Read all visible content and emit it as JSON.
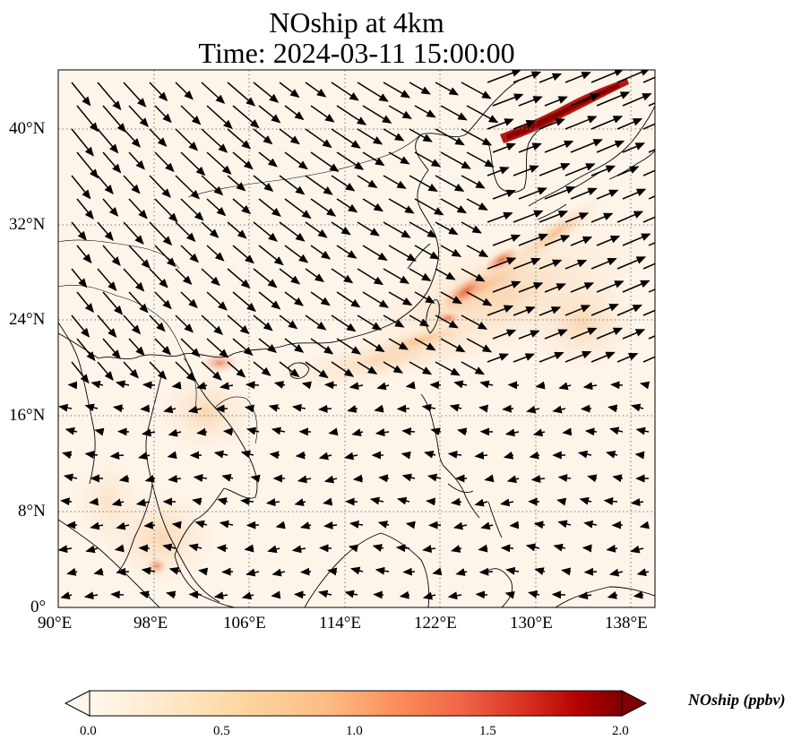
{
  "title": {
    "line1": "NOship at 4km",
    "line2": "Time: 2024-03-11 15:00:00"
  },
  "map": {
    "projection": "PlateCarree",
    "lon_range": [
      90,
      140
    ],
    "lat_range": [
      0,
      45
    ],
    "gridlines": "dotted",
    "lon_ticks": [
      "90°E",
      "98°E",
      "106°E",
      "114°E",
      "122°E",
      "130°E",
      "138°E"
    ],
    "lat_ticks": [
      "0°",
      "8°N",
      "16°N",
      "24°N",
      "32°N",
      "40°N"
    ],
    "plume_color_low": "#fdf3e6",
    "plume_color_high": "#8b0000"
  },
  "colorbar": {
    "label": "NOship (ppbv)",
    "ticks": [
      "0.0",
      "0.5",
      "1.0",
      "1.5",
      "2.0"
    ],
    "range": [
      0.0,
      2.0
    ],
    "extend": "both",
    "colormap": "OrRd",
    "colors": [
      "#fff7ec",
      "#fee8c8",
      "#fdd49e",
      "#fdbb84",
      "#fc8d59",
      "#ef6548",
      "#d7301f",
      "#b30000",
      "#7f0000"
    ]
  }
}
